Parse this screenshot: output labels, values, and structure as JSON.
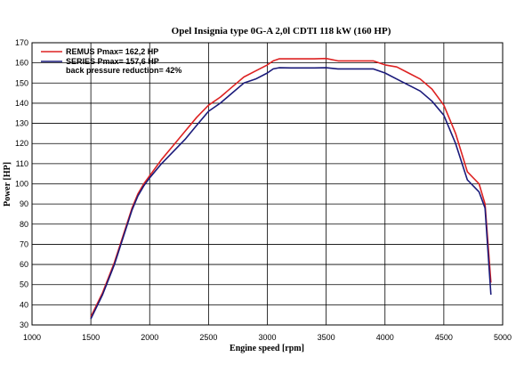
{
  "chart_data": {
    "type": "line",
    "title": "Opel Insignia type 0G-A 2,0l CDTI 118 kW (160 HP)",
    "xlabel": "Engine speed [rpm]",
    "ylabel": "Power [HP]",
    "xlim": [
      1000,
      5000
    ],
    "ylim": [
      30,
      170
    ],
    "x_ticks": [
      1000,
      1500,
      2000,
      2500,
      3000,
      3500,
      4000,
      4500,
      5000
    ],
    "y_ticks": [
      30,
      40,
      50,
      60,
      70,
      80,
      90,
      100,
      110,
      120,
      130,
      140,
      150,
      160,
      170
    ],
    "grid": true,
    "legend_position": "top-left",
    "legend_note": "back pressure reduction= 42%",
    "series": [
      {
        "name": "REMUS Pmax= 162,2 HP",
        "color": "#dd2222",
        "x": [
          1500,
          1600,
          1700,
          1800,
          1850,
          1900,
          1950,
          2000,
          2100,
          2200,
          2300,
          2400,
          2500,
          2600,
          2700,
          2800,
          2900,
          3000,
          3050,
          3100,
          3200,
          3300,
          3400,
          3500,
          3600,
          3700,
          3800,
          3900,
          4000,
          4100,
          4200,
          4300,
          4400,
          4500,
          4600,
          4700,
          4800,
          4850,
          4900
        ],
        "y": [
          34,
          46,
          61,
          79,
          88,
          95,
          100,
          104,
          112,
          119,
          126,
          133,
          139,
          143,
          148,
          153,
          156,
          159,
          161,
          162,
          162,
          162,
          162,
          162.2,
          161,
          161,
          161,
          161,
          159,
          158,
          155,
          152,
          147,
          139,
          125,
          106,
          100,
          90,
          51
        ]
      },
      {
        "name": "SERIES Pmax= 157,6 HP",
        "color": "#1a1a7a",
        "x": [
          1500,
          1600,
          1700,
          1800,
          1850,
          1900,
          1950,
          2000,
          2100,
          2200,
          2300,
          2400,
          2500,
          2600,
          2700,
          2800,
          2900,
          3000,
          3050,
          3100,
          3200,
          3300,
          3400,
          3500,
          3600,
          3700,
          3800,
          3900,
          4000,
          4100,
          4200,
          4300,
          4400,
          4500,
          4600,
          4700,
          4800,
          4850,
          4900
        ],
        "y": [
          33,
          45,
          60,
          78,
          87,
          94,
          99,
          103,
          110,
          116,
          122,
          129,
          136,
          140,
          145,
          150,
          152,
          155,
          157,
          157.6,
          157.5,
          157.5,
          157.5,
          157.6,
          157,
          157,
          157,
          157,
          155,
          152,
          149,
          146,
          141,
          134,
          120,
          102,
          96,
          88,
          45
        ]
      }
    ]
  }
}
